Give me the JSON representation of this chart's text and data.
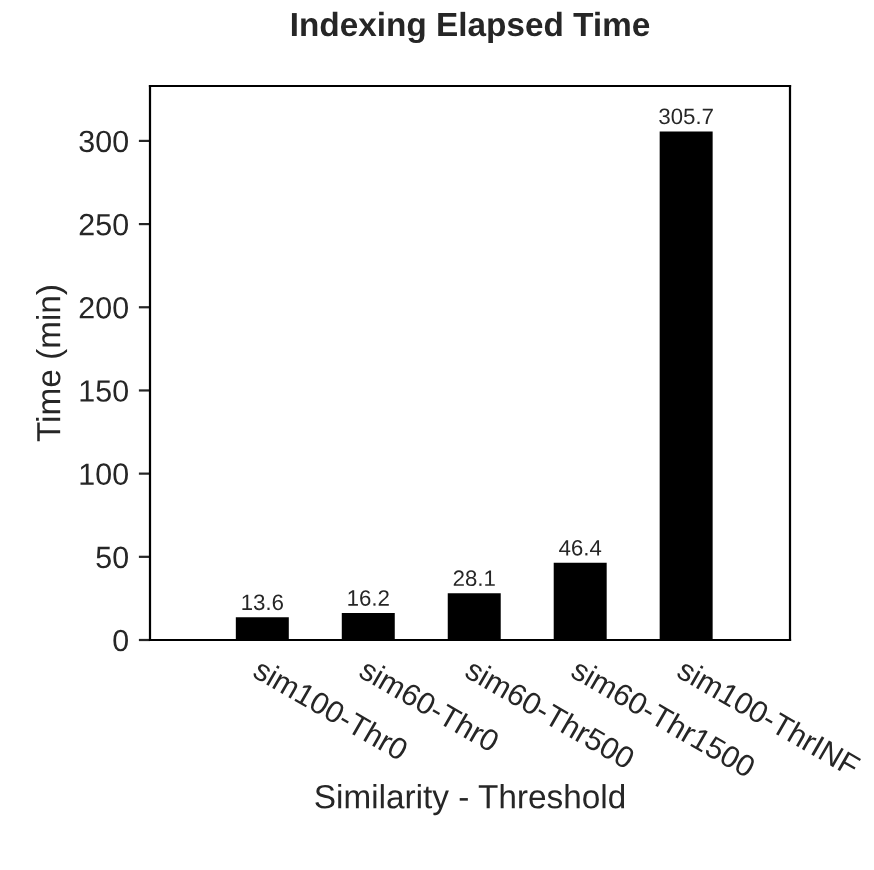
{
  "chart_data": {
    "type": "bar",
    "title": "Indexing Elapsed Time",
    "xlabel": "Similarity - Threshold",
    "ylabel": "Time (min)",
    "categories": [
      "sim100-Thr0",
      "sim60-Thr0",
      "sim60-Thr500",
      "sim60-Thr1500",
      "sim100-ThrINF"
    ],
    "values": [
      13.6,
      16.2,
      28.1,
      46.4,
      305.7
    ],
    "color": "#000000",
    "ylim": [
      0,
      333
    ],
    "yticks": [
      0,
      50,
      100,
      150,
      200,
      250,
      300
    ],
    "grid": false,
    "data_labels": true
  }
}
